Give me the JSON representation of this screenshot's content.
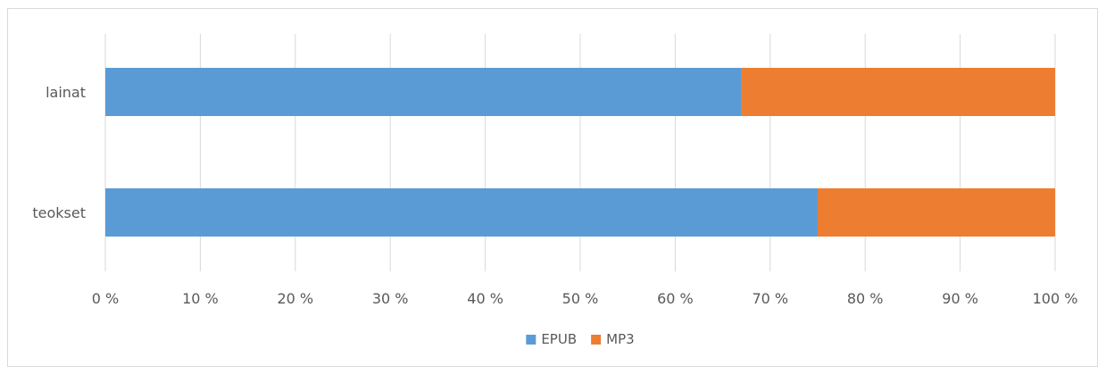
{
  "chart_data": {
    "type": "bar",
    "orientation": "horizontal",
    "stacked": "percent",
    "categories": [
      "lainat",
      "teokset"
    ],
    "series": [
      {
        "name": "EPUB",
        "values": [
          67,
          75
        ],
        "color": "#5b9bd5"
      },
      {
        "name": "MP3",
        "values": [
          33,
          25
        ],
        "color": "#ed7d31"
      }
    ],
    "xlim": [
      0,
      100
    ],
    "xticks": [
      "0 %",
      "10 %",
      "20 %",
      "30 %",
      "40 %",
      "50 %",
      "60 %",
      "70 %",
      "80 %",
      "90 %",
      "100 %"
    ],
    "grid": true,
    "legend": "bottom-center",
    "title": "",
    "xlabel": "",
    "ylabel": ""
  }
}
